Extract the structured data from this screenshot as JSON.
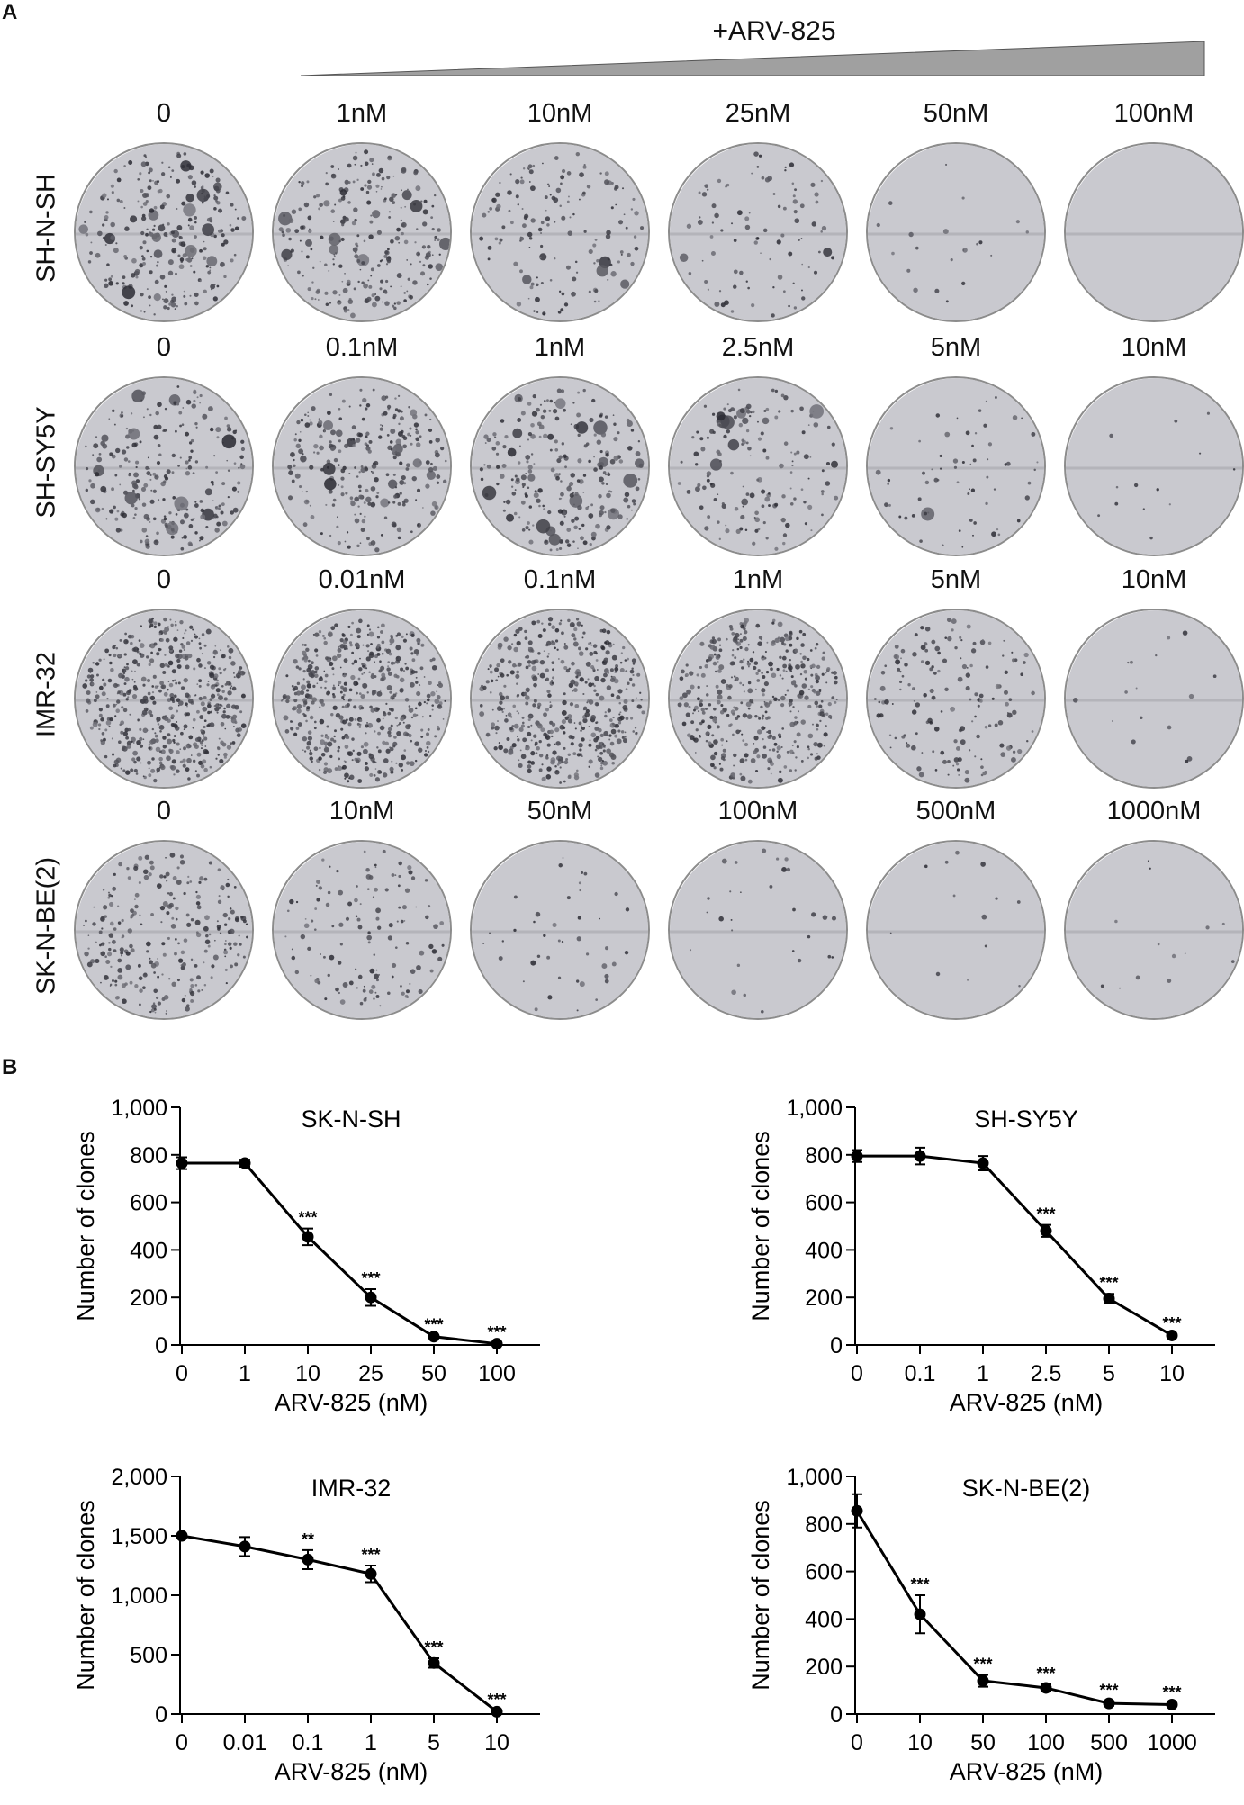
{
  "panel_a": {
    "letter": "A",
    "treatment_label": "+ARV-825",
    "rows": [
      {
        "cell_line": "SH-N-SH",
        "doses": [
          "0",
          "1nM",
          "10nM",
          "25nM",
          "50nM",
          "100nM"
        ],
        "density": [
          1.0,
          1.0,
          0.6,
          0.35,
          0.08,
          0.0
        ]
      },
      {
        "cell_line": "SH-SY5Y",
        "doses": [
          "0",
          "0.1nM",
          "1nM",
          "2.5nM",
          "5nM",
          "10nM"
        ],
        "density": [
          1.0,
          1.0,
          0.95,
          0.6,
          0.25,
          0.05
        ]
      },
      {
        "cell_line": "IMR-32",
        "doses": [
          "0",
          "0.01nM",
          "0.1nM",
          "1nM",
          "5nM",
          "10nM"
        ],
        "density": [
          1.0,
          0.95,
          0.9,
          0.8,
          0.3,
          0.03
        ]
      },
      {
        "cell_line": "SK-N-BE(2)",
        "doses": [
          "0",
          "10nM",
          "50nM",
          "100nM",
          "500nM",
          "1000nM"
        ],
        "density": [
          1.0,
          0.5,
          0.16,
          0.12,
          0.05,
          0.05
        ]
      }
    ]
  },
  "panel_b": {
    "letter": "B"
  },
  "chart_data": [
    {
      "type": "line",
      "title": "SK-N-SH",
      "xlabel": "ARV-825 (nM)",
      "ylabel": "Number of clones",
      "categories": [
        "0",
        "1",
        "10",
        "25",
        "50",
        "100"
      ],
      "values": [
        765,
        765,
        455,
        200,
        35,
        5
      ],
      "errors": [
        25,
        15,
        35,
        35,
        5,
        3
      ],
      "annotations": [
        "",
        "",
        "***",
        "***",
        "***",
        "***"
      ],
      "yticks": [
        "0",
        "200",
        "400",
        "600",
        "800",
        "1,000"
      ],
      "ylim": [
        0,
        1000
      ]
    },
    {
      "type": "line",
      "title": "SH-SY5Y",
      "xlabel": "ARV-825 (nM)",
      "ylabel": "Number of clones",
      "categories": [
        "0",
        "0.1",
        "1",
        "2.5",
        "5",
        "10"
      ],
      "values": [
        795,
        795,
        765,
        480,
        195,
        40
      ],
      "errors": [
        25,
        35,
        30,
        25,
        20,
        5
      ],
      "annotations": [
        "",
        "",
        "",
        "***",
        "***",
        "***"
      ],
      "yticks": [
        "0",
        "200",
        "400",
        "600",
        "800",
        "1,000"
      ],
      "ylim": [
        0,
        1000
      ]
    },
    {
      "type": "line",
      "title": "IMR-32",
      "xlabel": "ARV-825 (nM)",
      "ylabel": "Number of clones",
      "categories": [
        "0",
        "0.01",
        "0.1",
        "1",
        "5",
        "10"
      ],
      "values": [
        1500,
        1410,
        1300,
        1180,
        430,
        20
      ],
      "errors": [
        10,
        80,
        80,
        70,
        40,
        10
      ],
      "annotations": [
        "",
        "",
        "**",
        "***",
        "***",
        "***"
      ],
      "yticks": [
        "0",
        "500",
        "1,000",
        "1,500",
        "2,000"
      ],
      "ylim": [
        0,
        2000
      ]
    },
    {
      "type": "line",
      "title": "SK-N-BE(2)",
      "xlabel": "ARV-825 (nM)",
      "ylabel": "Number of clones",
      "categories": [
        "0",
        "10",
        "50",
        "100",
        "500",
        "1000"
      ],
      "values": [
        855,
        420,
        140,
        110,
        45,
        40
      ],
      "errors": [
        70,
        80,
        25,
        15,
        10,
        5
      ],
      "annotations": [
        "",
        "***",
        "***",
        "***",
        "***",
        "***"
      ],
      "yticks": [
        "0",
        "200",
        "400",
        "600",
        "800",
        "1,000"
      ],
      "ylim": [
        0,
        1000
      ]
    }
  ]
}
